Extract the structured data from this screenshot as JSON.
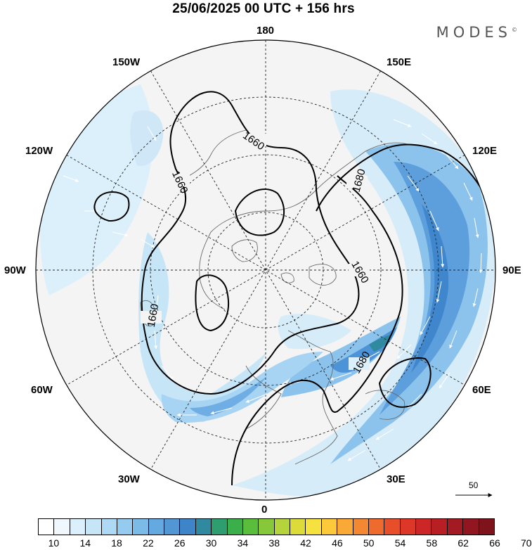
{
  "title": "25/06/2025  00 UTC  + 156 hrs",
  "brand": "MODES",
  "brand_mark": "©",
  "longitude_labels": {
    "lon_180": "180",
    "lon_150w": "150W",
    "lon_150e": "150E",
    "lon_120w": "120W",
    "lon_120e": "120E",
    "lon_90w": "90W",
    "lon_90e": "90E",
    "lon_60w": "60W",
    "lon_60e": "60E",
    "lon_30w": "30W",
    "lon_30e": "30E",
    "lon_0": "0"
  },
  "contour_labels": [
    "1660",
    "1660",
    "1660",
    "1680",
    "1660",
    "1680"
  ],
  "reference_vector_label": "50",
  "colorbar": {
    "tick_labels": [
      "10",
      "14",
      "18",
      "22",
      "26",
      "30",
      "34",
      "38",
      "42",
      "46",
      "50",
      "54",
      "58",
      "62",
      "66",
      "70"
    ],
    "colors": [
      "#ffffff",
      "#f0f8fd",
      "#dcf0fb",
      "#c6e6f8",
      "#aed9f4",
      "#94cbef",
      "#7bbbe8",
      "#64a9df",
      "#5296d4",
      "#3d85c8",
      "#2f8aa0",
      "#2e9d70",
      "#3bb04a",
      "#5bbd3c",
      "#86c83a",
      "#b5d33a",
      "#dcdb3a",
      "#f6e23e",
      "#fbc93a",
      "#f9a935",
      "#f48731",
      "#ee6a2d",
      "#e74f2a",
      "#dd3727",
      "#cc2726",
      "#b81f25",
      "#a41a23",
      "#911620",
      "#7e131c"
    ]
  },
  "colors": {
    "land": "#f2f2f2",
    "jet_light": "#cfe7f7",
    "jet_mid": "#8cc3ec",
    "jet_strong": "#4d93d8",
    "jet_core": "#2f8aa0"
  }
}
